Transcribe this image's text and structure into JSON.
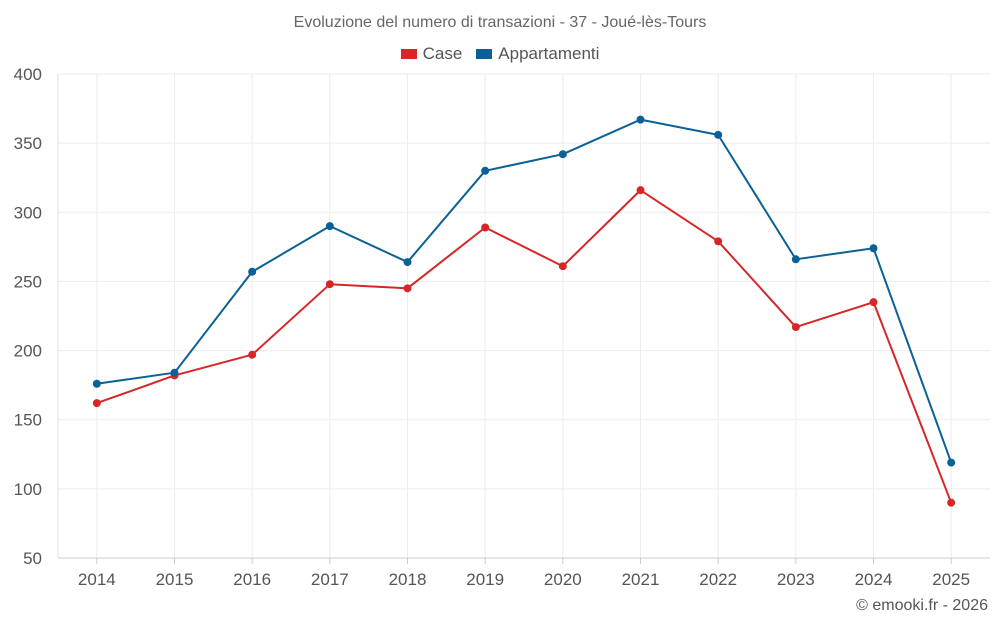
{
  "chart_data": {
    "type": "line",
    "title": "Evoluzione del numero di transazioni - 37 - Joué-lès-Tours",
    "categories": [
      "2014",
      "2015",
      "2016",
      "2017",
      "2018",
      "2019",
      "2020",
      "2021",
      "2022",
      "2023",
      "2024",
      "2025"
    ],
    "series": [
      {
        "name": "Case",
        "color": "#d62728",
        "values": [
          162,
          182,
          197,
          248,
          245,
          289,
          261,
          316,
          279,
          217,
          235,
          90
        ]
      },
      {
        "name": "Appartamenti",
        "color": "#0b6196",
        "values": [
          176,
          184,
          257,
          290,
          264,
          330,
          342,
          367,
          356,
          266,
          274,
          119
        ]
      }
    ],
    "xlabel": "",
    "ylabel": "",
    "ylim": [
      50,
      400
    ],
    "yticks": [
      "50",
      "100",
      "150",
      "200",
      "250",
      "300",
      "350",
      "400"
    ],
    "grid": true,
    "legend_position": "top-center"
  },
  "credit": "© emooki.fr - 2026"
}
